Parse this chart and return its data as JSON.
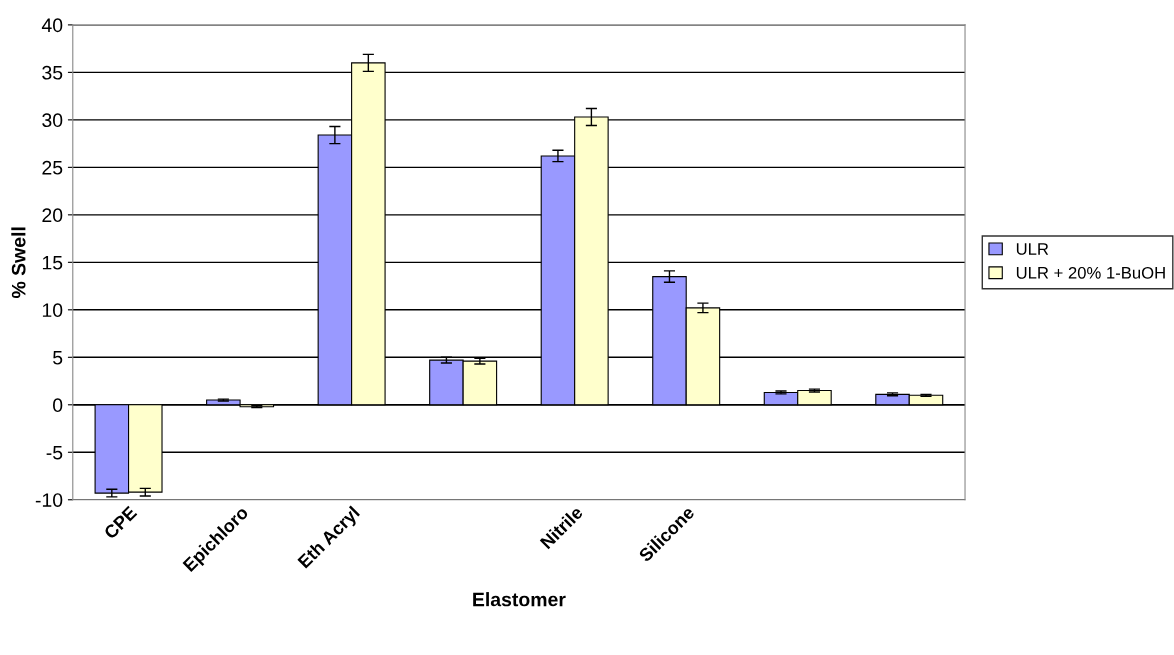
{
  "chart_data": {
    "type": "bar",
    "xlabel": "Elastomer",
    "ylabel": "% Swell",
    "categories": [
      "CPE",
      "Epichloro",
      "Eth Acryl",
      null,
      "Nitrile",
      "Silicone",
      null,
      null
    ],
    "series": [
      {
        "name": "ULR",
        "color": "#9999ff",
        "values": [
          -9.3,
          0.5,
          28.4,
          4.7,
          26.2,
          13.5,
          1.3,
          1.1
        ],
        "errors": [
          0.4,
          0.1,
          0.9,
          0.3,
          0.6,
          0.6,
          0.15,
          0.15
        ]
      },
      {
        "name": "ULR + 20% 1-BuOH",
        "color": "#ffffcc",
        "values": [
          -9.2,
          -0.2,
          36.0,
          4.6,
          30.3,
          10.2,
          1.5,
          1.0
        ],
        "errors": [
          0.4,
          0.1,
          0.9,
          0.3,
          0.9,
          0.5,
          0.15,
          0.1
        ]
      }
    ],
    "ylim": [
      -10,
      40
    ],
    "yticks": [
      -10,
      -5,
      0,
      5,
      10,
      15,
      20,
      25,
      30,
      35,
      40
    ],
    "grid": "y",
    "legend": "right"
  }
}
